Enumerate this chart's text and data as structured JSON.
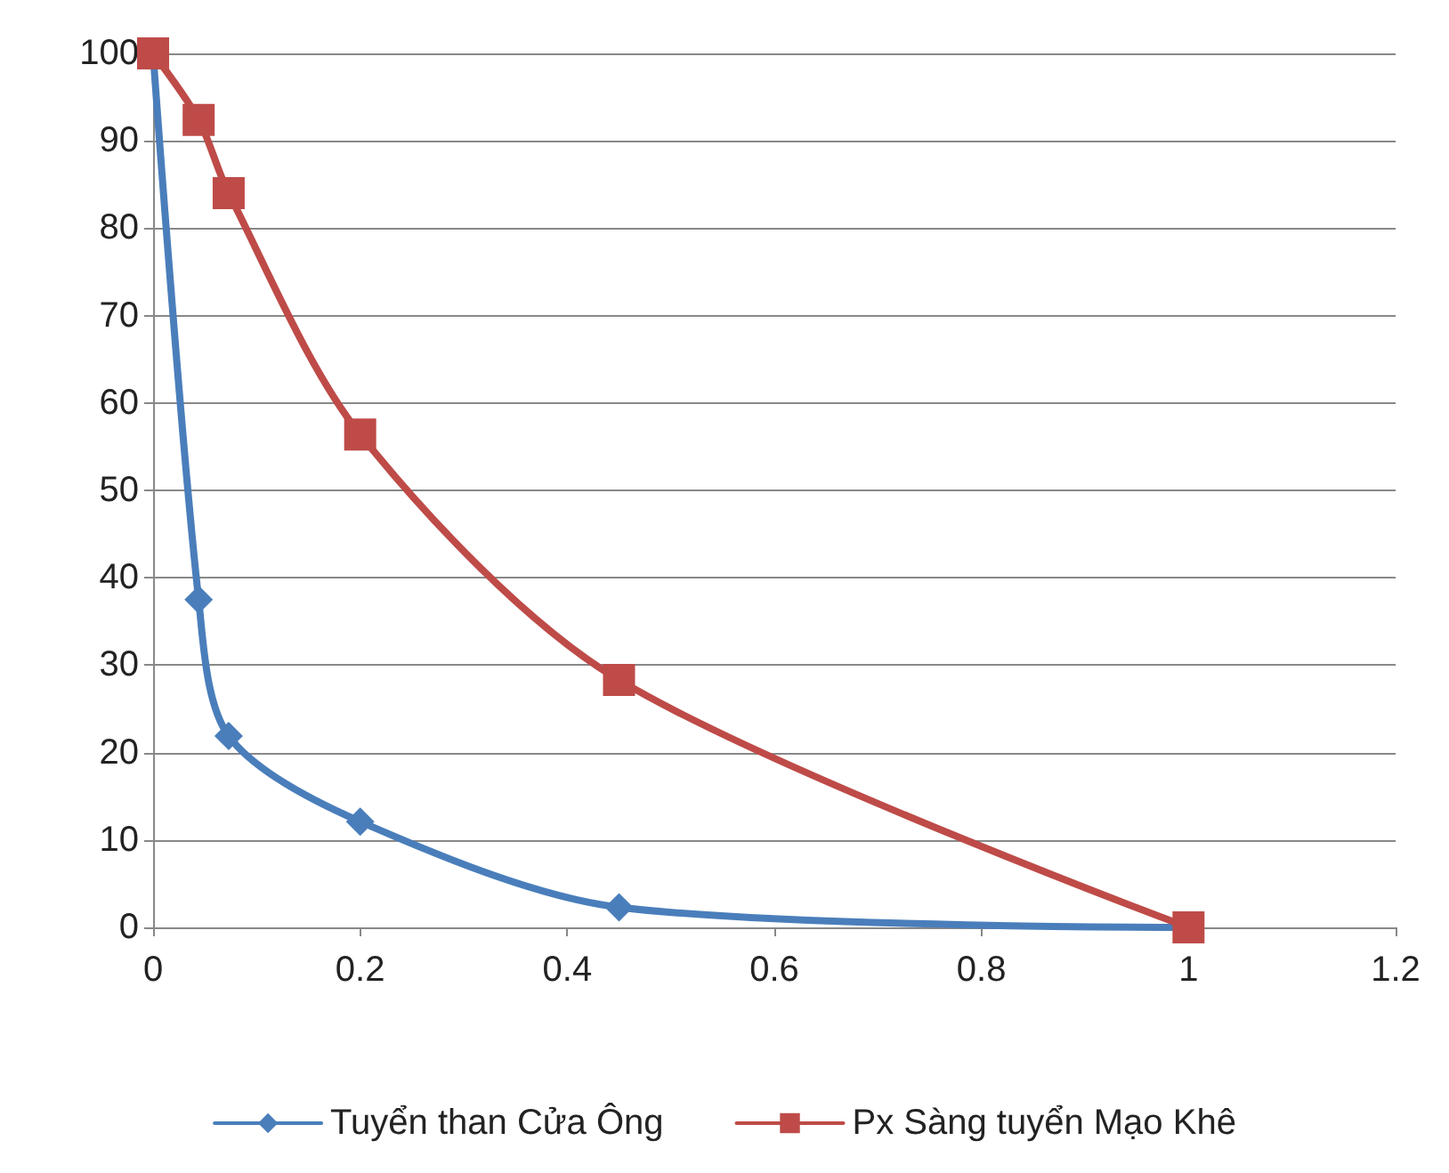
{
  "chart_data": {
    "type": "line",
    "x": [
      0,
      0.044,
      0.073,
      0.2,
      0.45,
      1
    ],
    "xlim": [
      0,
      1.2
    ],
    "xticks": [
      0,
      0.2,
      0.4,
      0.6,
      0.8,
      1,
      1.2
    ],
    "ylim": [
      0,
      100
    ],
    "yticks": [
      0,
      10,
      20,
      30,
      40,
      50,
      60,
      70,
      80,
      90,
      100
    ],
    "grid": "y",
    "legend": "bottom",
    "line_style": "solid",
    "series": [
      {
        "name": "Tuyển than Cửa Ông",
        "color": "#4a7ebb",
        "marker": "diamond",
        "values": [
          100,
          37.5,
          21.9,
          12.1,
          2.3,
          0
        ]
      },
      {
        "name": "Px Sàng tuyển Mạo Khê",
        "color": "#be4b48",
        "marker": "square",
        "values": [
          100,
          92.4,
          84,
          56.4,
          28.3,
          0
        ]
      }
    ]
  }
}
